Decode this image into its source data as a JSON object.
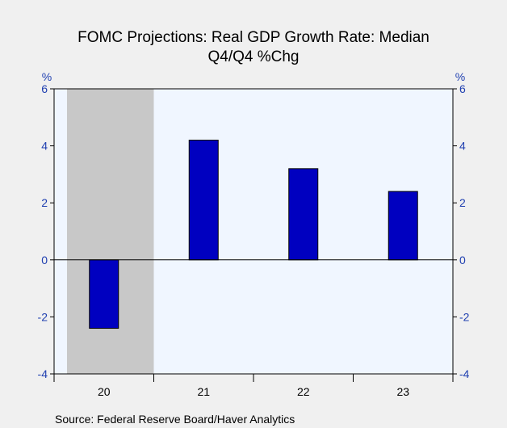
{
  "chart_data": {
    "type": "bar",
    "title": "FOMC Projections: Real GDP Growth Rate: Median",
    "subtitle": "Q4/Q4 %Chg",
    "categories": [
      "20",
      "21",
      "22",
      "23"
    ],
    "series": [
      {
        "values": [
          -2.4,
          4.2,
          3.2,
          2.4
        ],
        "color": "#0000c0"
      }
    ],
    "ylim": [
      -4,
      6
    ],
    "yticks": [
      -4,
      -2,
      0,
      2,
      4,
      6
    ],
    "unit_left": "%",
    "unit_right": "%",
    "shaded_category": "20",
    "source": "Source:  Federal Reserve Board/Haver Analytics",
    "colors": {
      "plot_background": "#f0f6ff",
      "shade": "#c8c8c8",
      "bar": "#0000c0",
      "tick_labels": "#1f3fb0",
      "page_background": "#f0f0f0"
    }
  }
}
